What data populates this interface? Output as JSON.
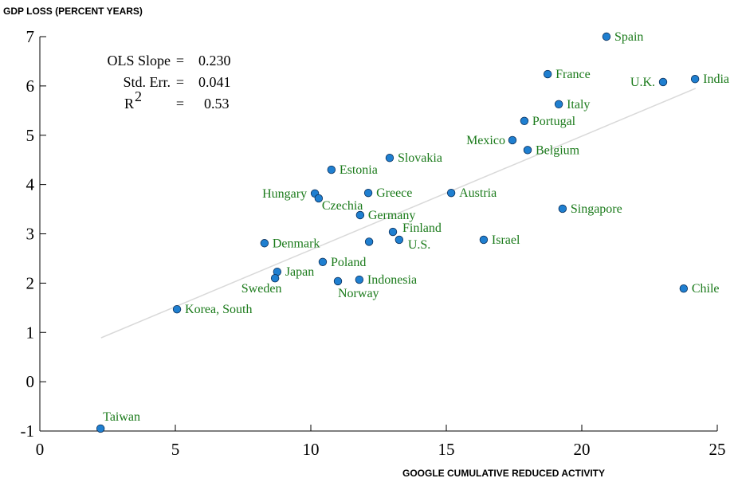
{
  "chart_data": {
    "type": "scatter",
    "y_label": "GDP LOSS (PERCENT YEARS)",
    "x_label": "GOOGLE CUMULATIVE REDUCED ACTIVITY",
    "x": [
      2.24,
      5.06,
      8.29,
      8.76,
      8.68,
      10.44,
      10.15,
      10.29,
      10.76,
      11.0,
      11.79,
      11.82,
      12.12,
      13.03,
      13.26,
      12.15,
      12.91,
      15.18,
      16.38,
      17.44,
      17.88,
      18.0,
      18.74,
      19.15,
      19.29,
      20.91,
      23.0,
      24.18,
      23.76
    ],
    "y": [
      -0.95,
      1.47,
      2.81,
      2.23,
      2.1,
      2.43,
      3.82,
      3.72,
      4.3,
      2.04,
      2.07,
      3.38,
      3.83,
      3.04,
      2.88,
      2.84,
      4.54,
      3.83,
      2.88,
      4.9,
      5.29,
      4.7,
      6.24,
      5.63,
      3.51,
      7.0,
      6.08,
      6.14,
      1.89
    ],
    "labels": [
      "Taiwan",
      "Korea, South",
      "Denmark",
      "Japan",
      "Sweden",
      "Poland",
      "Hungary",
      "Czechia",
      "Estonia",
      "Norway",
      "Indonesia",
      "Germany",
      "Greece",
      "Finland",
      "U.S.",
      null,
      "Slovakia",
      "Austria",
      "Israel",
      "Mexico",
      "Portugal",
      "Belgium",
      "France",
      "Italy",
      "Singapore",
      "Spain",
      "U.K.",
      "India",
      "Chile"
    ],
    "color": "#1f7fd0",
    "label_color": "#1a7a1a",
    "fit": {
      "x": [
        2.26,
        24.2
      ],
      "y": [
        0.89,
        5.95
      ],
      "color": "#d9d9d9"
    },
    "stats": [
      {
        "label": "OLS Slope",
        "sep": "=",
        "value": "0.230"
      },
      {
        "label": "Std. Err.",
        "sep": "=",
        "value": "0.041"
      },
      {
        "label": "R",
        "sup": "2",
        "sep": "=",
        "value": "0.53"
      }
    ],
    "xlim": [
      0,
      25
    ],
    "xticks": [
      0,
      5,
      10,
      15,
      20,
      25
    ],
    "ylim": [
      -1,
      7
    ],
    "yticks": [
      -1,
      0,
      1,
      2,
      3,
      4,
      5,
      6,
      7
    ]
  }
}
